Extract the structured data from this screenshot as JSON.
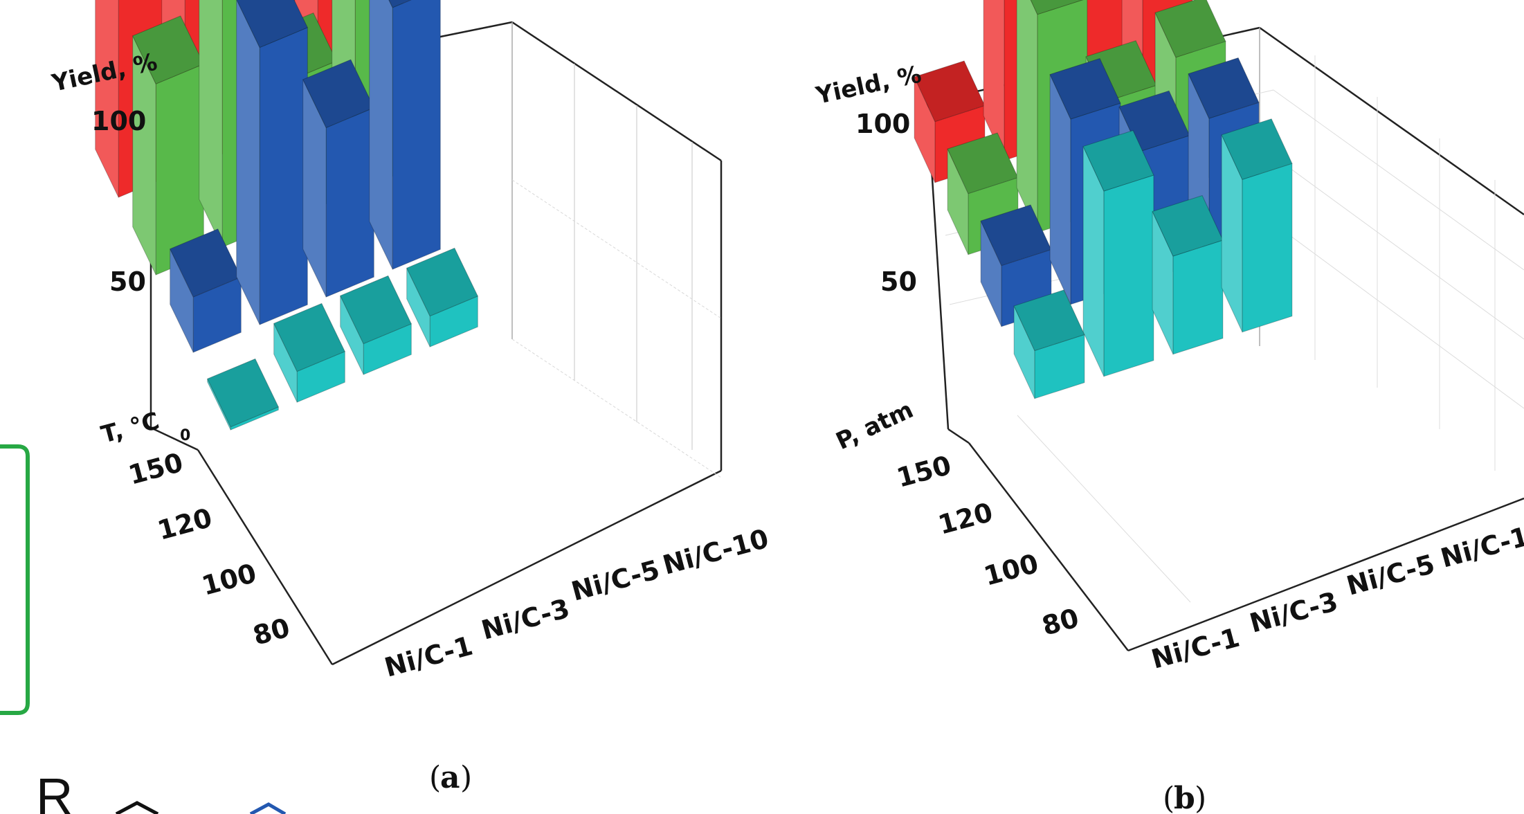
{
  "colors": {
    "red": "#ee2a2a",
    "green": "#58b94a",
    "blue": "#2358b0",
    "cyan": "#1fc2c0",
    "scheme_outline": "#27a844"
  },
  "captions": {
    "a_open": "(",
    "a_letter": "a",
    "a_close": ")",
    "b_open": "(",
    "b_letter": "b",
    "b_close": ")"
  },
  "scheme": {
    "r_label": "R"
  },
  "chart_data": [
    {
      "type": "bar3d",
      "panel": "a",
      "zlabel": "Yield, %",
      "ylabel": "T, °C",
      "categories": [
        "Ni/C-1",
        "Ni/C-3",
        "Ni/C-5",
        "Ni/C-10"
      ],
      "z_ticks": [
        "0",
        "50",
        "100"
      ],
      "zlim": [
        0,
        100
      ],
      "series": [
        {
          "name": "150",
          "color": "red",
          "values": [
            100,
            100,
            100,
            100
          ]
        },
        {
          "name": "120",
          "color": "green",
          "values": [
            62,
            95,
            45,
            95
          ]
        },
        {
          "name": "100",
          "color": "blue",
          "values": [
            18,
            90,
            55,
            85
          ]
        },
        {
          "name": "80",
          "color": "cyan",
          "values": [
            1,
            10,
            10,
            10
          ]
        }
      ],
      "x_tick_labels": [
        "Ni/C-1",
        "Ni/C-3",
        "Ni/C-5",
        "Ni/C-10"
      ],
      "y_tick_labels": [
        "150",
        "120",
        "100",
        "80"
      ]
    },
    {
      "type": "bar3d",
      "panel": "b",
      "zlabel": "Yield, %",
      "ylabel": "P, atm",
      "categories": [
        "Ni/C-1",
        "Ni/C-3",
        "Ni/C-5",
        "Ni/C-1"
      ],
      "z_ticks": [
        "50",
        "100"
      ],
      "zlim": [
        0,
        100
      ],
      "series": [
        {
          "name": "150",
          "color": "red",
          "values": [
            28,
            100,
            98,
            95
          ]
        },
        {
          "name": "120",
          "color": "green",
          "values": [
            28,
            100,
            50,
            60
          ]
        },
        {
          "name": "100",
          "color": "blue",
          "values": [
            28,
            85,
            60,
            65
          ]
        },
        {
          "name": "80",
          "color": "cyan",
          "values": [
            22,
            85,
            45,
            70
          ]
        }
      ],
      "x_tick_labels": [
        "Ni/C-1",
        "Ni/C-3",
        "Ni/C-5",
        "Ni/C-1"
      ],
      "y_tick_labels": [
        "150",
        "120",
        "100",
        "80"
      ]
    }
  ]
}
